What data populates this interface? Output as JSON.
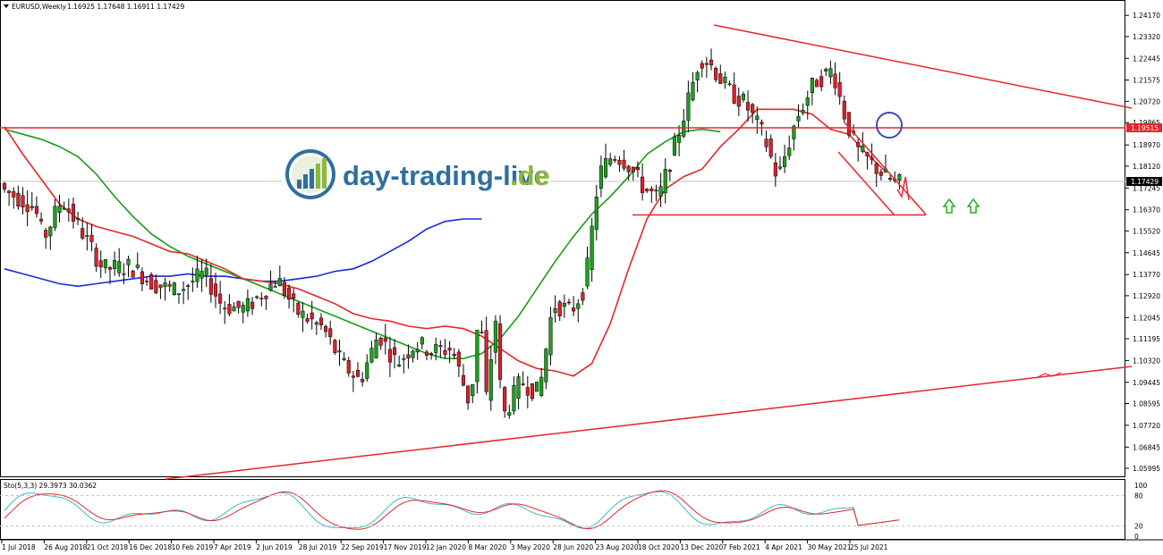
{
  "header": {
    "symbol": "EURUSD,Weekly",
    "ohlc": "1.16925 1.17648 1.16911 1.17429"
  },
  "logo": {
    "name_main": "day-trading-live",
    "name_tld": ".de",
    "icon": "bar-chart-globe-icon",
    "color_main": "#2f6f9f",
    "color_tld": "#8cb83e"
  },
  "indicator": {
    "label": "Sto(5,3,3) 29.3973 30.0362",
    "levels": [
      "100",
      "80",
      "20",
      "0"
    ]
  },
  "colors": {
    "bull": "#1ca01c",
    "bear": "#e0202a",
    "ma_fast": "#e8262a",
    "ma_mid": "#1a9a1a",
    "ma_slow": "#1a2ad8",
    "trendline": "#e8262a",
    "price_tag_bg": "#e8262a",
    "current_tag_bg": "#000000",
    "arrow": "#22b022",
    "circle": "#3b4ab8"
  },
  "chart_data": {
    "type": "candlestick",
    "symbol": "EURUSD",
    "timeframe": "Weekly",
    "ylim": [
      1.056,
      1.245
    ],
    "yticks": [
      "1.24170",
      "1.23320",
      "1.22445",
      "1.21575",
      "1.20720",
      "1.19865",
      "1.18970",
      "1.18120",
      "1.17245",
      "1.16370",
      "1.15520",
      "1.14645",
      "1.13770",
      "1.12920",
      "1.12045",
      "1.11195",
      "1.10320",
      "1.09445",
      "1.08595",
      "1.07720",
      "1.06845",
      "1.05995"
    ],
    "xticks": [
      "1 Jul 2018",
      "26 Aug 2018",
      "21 Oct 2018",
      "16 Dec 2018",
      "10 Feb 2019",
      "7 Apr 2019",
      "2 Jun 2019",
      "28 Jul 2019",
      "22 Sep 2019",
      "17 Nov 2019",
      "12 Jan 2020",
      "8 Mar 2020",
      "3 May 2020",
      "28 Jun 2020",
      "23 Aug 2020",
      "18 Oct 2020",
      "13 Dec 2020",
      "7 Feb 2021",
      "4 Apr 2021",
      "30 May 2021",
      "25 Jul 2021"
    ],
    "horizontal_level": "1.19515",
    "current_price": "1.17429",
    "support_level": 1.1625,
    "moving_averages": {
      "fast": [
        [
          0,
          1.197
        ],
        [
          4,
          1.186
        ],
        [
          8,
          1.176
        ],
        [
          12,
          1.166
        ],
        [
          16,
          1.16
        ],
        [
          20,
          1.157
        ],
        [
          24,
          1.155
        ],
        [
          28,
          1.153
        ],
        [
          32,
          1.15
        ],
        [
          36,
          1.147
        ],
        [
          40,
          1.146
        ],
        [
          44,
          1.143
        ],
        [
          48,
          1.14
        ],
        [
          52,
          1.136
        ],
        [
          56,
          1.135
        ],
        [
          60,
          1.134
        ],
        [
          64,
          1.132
        ],
        [
          68,
          1.129
        ],
        [
          72,
          1.126
        ],
        [
          76,
          1.122
        ],
        [
          80,
          1.12
        ],
        [
          84,
          1.119
        ],
        [
          88,
          1.117
        ],
        [
          92,
          1.116
        ],
        [
          96,
          1.117
        ],
        [
          100,
          1.116
        ],
        [
          104,
          1.113
        ],
        [
          108,
          1.108
        ],
        [
          112,
          1.103
        ],
        [
          116,
          1.1
        ],
        [
          120,
          1.099
        ],
        [
          124,
          1.097
        ],
        [
          128,
          1.102
        ],
        [
          132,
          1.118
        ],
        [
          136,
          1.14
        ],
        [
          140,
          1.16
        ],
        [
          144,
          1.172
        ],
        [
          148,
          1.177
        ],
        [
          152,
          1.18
        ],
        [
          156,
          1.189
        ],
        [
          160,
          1.196
        ],
        [
          164,
          1.204
        ],
        [
          168,
          1.204
        ],
        [
          172,
          1.204
        ],
        [
          176,
          1.202
        ],
        [
          180,
          1.196
        ],
        [
          184,
          1.194
        ],
        [
          188,
          1.186
        ],
        [
          192,
          1.179
        ]
      ],
      "mid": [
        [
          0,
          1.196
        ],
        [
          4,
          1.194
        ],
        [
          8,
          1.192
        ],
        [
          12,
          1.189
        ],
        [
          16,
          1.185
        ],
        [
          20,
          1.178
        ],
        [
          24,
          1.169
        ],
        [
          28,
          1.161
        ],
        [
          32,
          1.154
        ],
        [
          36,
          1.149
        ],
        [
          40,
          1.145
        ],
        [
          44,
          1.142
        ],
        [
          48,
          1.139
        ],
        [
          52,
          1.136
        ],
        [
          56,
          1.133
        ],
        [
          60,
          1.13
        ],
        [
          64,
          1.127
        ],
        [
          68,
          1.124
        ],
        [
          72,
          1.121
        ],
        [
          76,
          1.118
        ],
        [
          80,
          1.115
        ],
        [
          84,
          1.112
        ],
        [
          88,
          1.109
        ],
        [
          92,
          1.106
        ],
        [
          96,
          1.104
        ],
        [
          100,
          1.104
        ],
        [
          104,
          1.106
        ],
        [
          108,
          1.112
        ],
        [
          112,
          1.121
        ],
        [
          116,
          1.132
        ],
        [
          120,
          1.143
        ],
        [
          124,
          1.153
        ],
        [
          128,
          1.162
        ],
        [
          132,
          1.169
        ],
        [
          136,
          1.177
        ],
        [
          140,
          1.186
        ],
        [
          144,
          1.191
        ],
        [
          148,
          1.195
        ],
        [
          152,
          1.196
        ],
        [
          156,
          1.195
        ]
      ],
      "slow": [
        [
          0,
          1.14
        ],
        [
          4,
          1.138
        ],
        [
          8,
          1.136
        ],
        [
          12,
          1.134
        ],
        [
          16,
          1.133
        ],
        [
          20,
          1.134
        ],
        [
          24,
          1.135
        ],
        [
          28,
          1.136
        ],
        [
          32,
          1.137
        ],
        [
          36,
          1.137
        ],
        [
          40,
          1.138
        ],
        [
          44,
          1.137
        ],
        [
          48,
          1.137
        ],
        [
          52,
          1.136
        ],
        [
          56,
          1.135
        ],
        [
          60,
          1.135
        ],
        [
          64,
          1.136
        ],
        [
          68,
          1.137
        ],
        [
          72,
          1.139
        ],
        [
          76,
          1.14
        ],
        [
          80,
          1.143
        ],
        [
          84,
          1.147
        ],
        [
          88,
          1.151
        ],
        [
          92,
          1.156
        ],
        [
          96,
          1.159
        ],
        [
          100,
          1.16
        ],
        [
          104,
          1.16
        ]
      ]
    }
  }
}
